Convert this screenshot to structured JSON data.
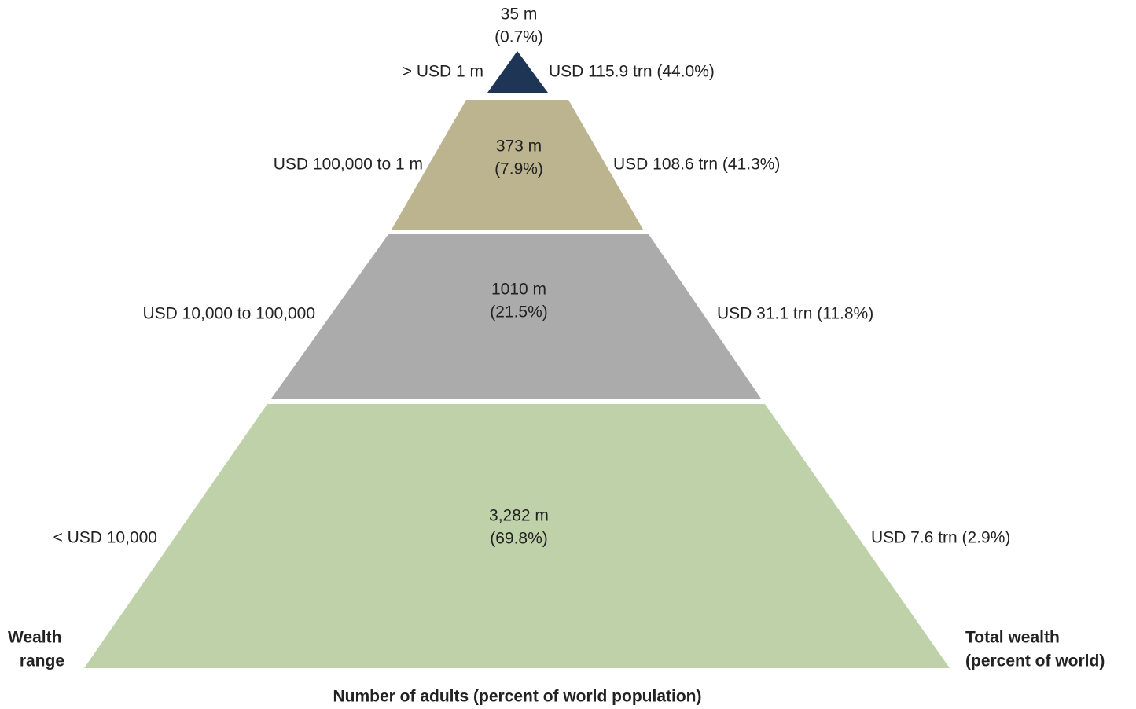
{
  "tiers": [
    {
      "range": "> USD 1 m",
      "adults": "35 m",
      "adults_pct": "(0.7%)",
      "wealth": "USD 115.9 trn (44.0%)"
    },
    {
      "range": "USD 100,000 to 1 m",
      "adults": "373 m",
      "adults_pct": "(7.9%)",
      "wealth": "USD 108.6 trn (41.3%)"
    },
    {
      "range": "USD 10,000 to 100,000",
      "adults": "1010 m",
      "adults_pct": "(21.5%)",
      "wealth": "USD 31.1 trn (11.8%)"
    },
    {
      "range": "< USD 10,000",
      "adults": "3,282 m",
      "adults_pct": "(69.8%)",
      "wealth": "USD 7.6 trn (2.9%)"
    }
  ],
  "left_label": [
    "Wealth",
    "range"
  ],
  "right_label": [
    "Total wealth",
    "(percent of world)"
  ],
  "bottom_label": "Number of adults (percent of world population)"
}
